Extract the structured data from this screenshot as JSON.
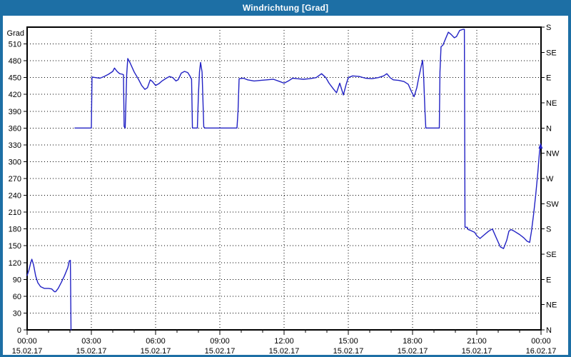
{
  "window": {
    "title": "Windrichtung [Grad]",
    "colors": {
      "title_bar": "#1d6fa5",
      "title_text": "#ffffff",
      "border": "#1d6fa5",
      "background": "#ffffff"
    }
  },
  "chart_data": {
    "type": "line",
    "title": "Windrichtung [Grad]",
    "grid": "dotted",
    "legend": "none",
    "line_color": "#2222c4",
    "grid_color": "#000000",
    "frame_color": "#000000",
    "text_color": "#000000",
    "x_axis": {
      "range_hours": [
        0,
        24
      ],
      "minor_tick_hours": 1,
      "major_ticks": [
        {
          "hour": 0,
          "time": "00:00",
          "date": "15.02.17"
        },
        {
          "hour": 3,
          "time": "03:00",
          "date": "15.02.17"
        },
        {
          "hour": 6,
          "time": "06:00",
          "date": "15.02.17"
        },
        {
          "hour": 9,
          "time": "09:00",
          "date": "15.02.17"
        },
        {
          "hour": 12,
          "time": "12:00",
          "date": "15.02.17"
        },
        {
          "hour": 15,
          "time": "15:00",
          "date": "15.02.17"
        },
        {
          "hour": 18,
          "time": "18:00",
          "date": "15.02.17"
        },
        {
          "hour": 21,
          "time": "21:00",
          "date": "15.02.17"
        },
        {
          "hour": 24,
          "time": "00:00",
          "date": "16.02.17"
        }
      ]
    },
    "y_axis_left": {
      "label": "Grad",
      "min": 0,
      "max": 540,
      "tick_step": 30,
      "tick_labels": [
        "0",
        "30",
        "60",
        "90",
        "120",
        "150",
        "180",
        "210",
        "240",
        "270",
        "300",
        "330",
        "360",
        "390",
        "420",
        "450",
        "480",
        "510"
      ]
    },
    "y_axis_right": {
      "tick_step": 45,
      "tick_labels": [
        {
          "deg": 0,
          "label": "N"
        },
        {
          "deg": 45,
          "label": "NE"
        },
        {
          "deg": 90,
          "label": "E"
        },
        {
          "deg": 135,
          "label": "SE"
        },
        {
          "deg": 180,
          "label": "S"
        },
        {
          "deg": 225,
          "label": "SW"
        },
        {
          "deg": 270,
          "label": "W"
        },
        {
          "deg": 315,
          "label": "NW"
        },
        {
          "deg": 360,
          "label": "N"
        },
        {
          "deg": 405,
          "label": "NE"
        },
        {
          "deg": 450,
          "label": "E"
        },
        {
          "deg": 495,
          "label": "SE"
        },
        {
          "deg": 540,
          "label": "S"
        }
      ]
    },
    "series": [
      {
        "name": "Windrichtung",
        "segments": [
          [
            [
              0.0,
              97
            ],
            [
              0.08,
              106
            ],
            [
              0.17,
              120
            ],
            [
              0.22,
              126
            ],
            [
              0.3,
              116
            ],
            [
              0.4,
              96
            ],
            [
              0.5,
              84
            ],
            [
              0.63,
              77
            ],
            [
              0.8,
              74
            ],
            [
              1.0,
              74
            ],
            [
              1.15,
              73
            ],
            [
              1.28,
              68
            ],
            [
              1.33,
              68
            ],
            [
              1.45,
              74
            ],
            [
              1.6,
              85
            ],
            [
              1.75,
              97
            ],
            [
              1.9,
              111
            ],
            [
              1.97,
              123
            ],
            [
              2.02,
              124
            ],
            [
              2.05,
              0
            ]
          ],
          [
            [
              2.23,
              360
            ],
            [
              3.0,
              360
            ],
            [
              3.03,
              451
            ],
            [
              3.2,
              450
            ],
            [
              3.4,
              449
            ],
            [
              3.6,
              452
            ],
            [
              3.8,
              456
            ],
            [
              4.0,
              461
            ],
            [
              4.08,
              467
            ],
            [
              4.2,
              461
            ],
            [
              4.32,
              457
            ],
            [
              4.45,
              456
            ],
            [
              4.5,
              455
            ],
            [
              4.53,
              363
            ],
            [
              4.58,
              360
            ],
            [
              4.65,
              455
            ],
            [
              4.7,
              484
            ],
            [
              4.8,
              477
            ],
            [
              5.0,
              460
            ],
            [
              5.2,
              447
            ],
            [
              5.35,
              436
            ],
            [
              5.5,
              429
            ],
            [
              5.62,
              432
            ],
            [
              5.75,
              446
            ],
            [
              5.85,
              443
            ],
            [
              6.0,
              436
            ],
            [
              6.15,
              439
            ],
            [
              6.3,
              444
            ],
            [
              6.5,
              449
            ],
            [
              6.65,
              452
            ],
            [
              6.8,
              450
            ],
            [
              6.95,
              444
            ],
            [
              7.05,
              446
            ],
            [
              7.2,
              458
            ],
            [
              7.35,
              461
            ],
            [
              7.5,
              459
            ],
            [
              7.6,
              453
            ],
            [
              7.68,
              447
            ],
            [
              7.72,
              360
            ],
            [
              7.95,
              360
            ],
            [
              8.0,
              420
            ],
            [
              8.05,
              460
            ],
            [
              8.1,
              477
            ],
            [
              8.17,
              460
            ],
            [
              8.25,
              362
            ],
            [
              8.3,
              360
            ],
            [
              9.8,
              360
            ],
            [
              9.85,
              390
            ],
            [
              9.9,
              448
            ],
            [
              10.1,
              449
            ],
            [
              10.3,
              446
            ],
            [
              10.6,
              444
            ],
            [
              10.9,
              445
            ],
            [
              11.2,
              446
            ],
            [
              11.5,
              447
            ],
            [
              11.8,
              443
            ],
            [
              12.0,
              440
            ],
            [
              12.2,
              444
            ],
            [
              12.4,
              449
            ],
            [
              12.6,
              448
            ],
            [
              12.9,
              447
            ],
            [
              13.2,
              448
            ],
            [
              13.5,
              450
            ],
            [
              13.75,
              457
            ],
            [
              13.95,
              450
            ],
            [
              14.1,
              440
            ],
            [
              14.3,
              430
            ],
            [
              14.45,
              423
            ],
            [
              14.6,
              440
            ],
            [
              14.77,
              419
            ],
            [
              14.9,
              438
            ],
            [
              15.0,
              450
            ],
            [
              15.2,
              453
            ],
            [
              15.5,
              452
            ],
            [
              15.8,
              449
            ],
            [
              16.1,
              448
            ],
            [
              16.4,
              450
            ],
            [
              16.65,
              453
            ],
            [
              16.8,
              457
            ],
            [
              16.95,
              450
            ],
            [
              17.1,
              446
            ],
            [
              17.35,
              445
            ],
            [
              17.6,
              443
            ],
            [
              17.8,
              438
            ],
            [
              17.95,
              425
            ],
            [
              18.07,
              416
            ],
            [
              18.2,
              432
            ],
            [
              18.3,
              452
            ],
            [
              18.42,
              473
            ],
            [
              18.47,
              481
            ],
            [
              18.52,
              450
            ],
            [
              18.58,
              390
            ],
            [
              18.62,
              360
            ],
            [
              19.25,
              360
            ],
            [
              19.28,
              460
            ],
            [
              19.33,
              505
            ],
            [
              19.42,
              508
            ],
            [
              19.55,
              520
            ],
            [
              19.67,
              531
            ],
            [
              19.8,
              527
            ],
            [
              19.95,
              521
            ],
            [
              20.05,
              523
            ],
            [
              20.2,
              534
            ],
            [
              20.35,
              536
            ],
            [
              20.42,
              536
            ],
            [
              20.45,
              183
            ],
            [
              20.55,
              183
            ],
            [
              20.6,
              179
            ],
            [
              20.73,
              177
            ],
            [
              20.9,
              174
            ],
            [
              21.0,
              168
            ],
            [
              21.15,
              163
            ],
            [
              21.3,
              168
            ],
            [
              21.55,
              176
            ],
            [
              21.73,
              180
            ],
            [
              21.9,
              165
            ],
            [
              22.1,
              148
            ],
            [
              22.25,
              145
            ],
            [
              22.4,
              160
            ],
            [
              22.5,
              176
            ],
            [
              22.6,
              179
            ],
            [
              22.75,
              176
            ],
            [
              23.0,
              170
            ],
            [
              23.2,
              164
            ],
            [
              23.35,
              158
            ],
            [
              23.47,
              156
            ],
            [
              23.55,
              175
            ],
            [
              23.65,
              205
            ],
            [
              23.75,
              240
            ],
            [
              23.85,
              280
            ],
            [
              23.93,
              318
            ],
            [
              23.98,
              331
            ]
          ]
        ]
      }
    ]
  }
}
